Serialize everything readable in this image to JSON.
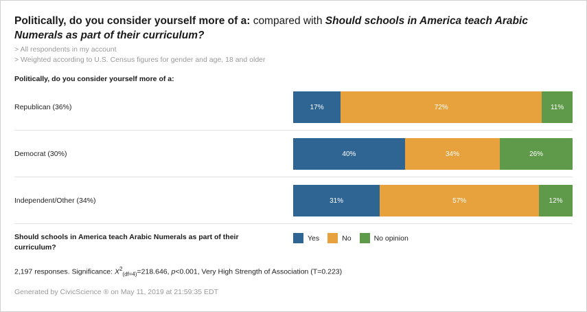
{
  "title": {
    "question_a": "Politically, do you consider yourself more of a:",
    "connector": "compared with",
    "question_b": "Should schools in America teach Arabic Numerals as part of their curriculum?"
  },
  "filters": [
    "> All respondents in my account",
    "> Weighted according to U.S. Census figures for gender and age, 18 and older"
  ],
  "row_question": "Politically, do you consider yourself more of a:",
  "legend_question": "Should schools in America teach Arabic Numerals as part of their curriculum?",
  "colors": {
    "yes": "#2f6593",
    "no": "#e8a23d",
    "no_opinion": "#5f9a4a"
  },
  "chart_data": {
    "type": "bar",
    "orientation": "horizontal-stacked-100",
    "categories": [
      "Republican (36%)",
      "Democrat (30%)",
      "Independent/Other (34%)"
    ],
    "series": [
      {
        "name": "Yes",
        "values": [
          17,
          40,
          31
        ],
        "labels": [
          "17%",
          "40%",
          "31%"
        ]
      },
      {
        "name": "No",
        "values": [
          72,
          34,
          57
        ],
        "labels": [
          "72%",
          "34%",
          "57%"
        ]
      },
      {
        "name": "No opinion",
        "values": [
          11,
          26,
          12
        ],
        "labels": [
          "11%",
          "26%",
          "12%"
        ]
      }
    ]
  },
  "stats": {
    "responses": "2,197 responses. Significance:",
    "chi": "X",
    "chi_sup": "2",
    "chi_sub": "(df=4)",
    "chi_value": "=218.646,",
    "p": "p",
    "p_value": "<0.001, Very High Strength of Association (T=0.223)"
  },
  "footer": "Generated by CivicScience ® on May 11, 2019 at 21:59:35 EDT"
}
